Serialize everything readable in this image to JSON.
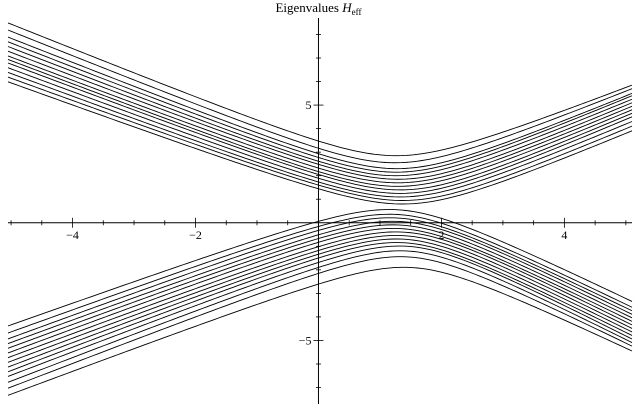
{
  "chart_data": {
    "type": "line",
    "title": {
      "prefix": "Eigenvalues ",
      "symbol": "H",
      "subscript": "eff"
    },
    "xlabel": "",
    "ylabel": "",
    "xlim": [
      -5.05,
      5.1
    ],
    "ylim": [
      -7.7,
      8.7
    ],
    "grid": false,
    "legend": "none",
    "x_ticks": [
      {
        "value": -4,
        "label": "−4"
      },
      {
        "value": -2,
        "label": "−2"
      },
      {
        "value": 2,
        "label": "2"
      },
      {
        "value": 4,
        "label": "4"
      }
    ],
    "y_ticks": [
      {
        "value": 5,
        "label": "5"
      },
      {
        "value": -5,
        "label": "−5"
      }
    ],
    "x_minor_step": 0.5,
    "y_minor_step": 1,
    "description_of_model": "Avoided crossings: each series is a pair of branches y = c ± sqrt((slope·(x − x0))² + gap²)",
    "series": [
      {
        "upper": true,
        "y_left": 8.4,
        "y_min": 2.85,
        "y_right": 5.7,
        "x0": 1.25
      },
      {
        "upper": true,
        "y_left": 8.1,
        "y_min": 2.55,
        "y_right": 5.55,
        "x0": 1.25
      },
      {
        "upper": true,
        "y_left": 7.8,
        "y_min": 2.3,
        "y_right": 5.35,
        "x0": 1.3
      },
      {
        "upper": true,
        "y_left": 7.6,
        "y_min": 2.15,
        "y_right": 5.25,
        "x0": 1.3
      },
      {
        "upper": true,
        "y_left": 7.4,
        "y_min": 2.0,
        "y_right": 5.1,
        "x0": 1.3
      },
      {
        "upper": true,
        "y_left": 7.2,
        "y_min": 1.85,
        "y_right": 4.95,
        "x0": 1.35
      },
      {
        "upper": true,
        "y_left": 7.0,
        "y_min": 1.7,
        "y_right": 4.8,
        "x0": 1.35
      },
      {
        "upper": true,
        "y_left": 6.85,
        "y_min": 1.55,
        "y_right": 4.65,
        "x0": 1.35
      },
      {
        "upper": true,
        "y_left": 6.7,
        "y_min": 1.4,
        "y_right": 4.5,
        "x0": 1.4
      },
      {
        "upper": true,
        "y_left": 6.5,
        "y_min": 1.25,
        "y_right": 4.35,
        "x0": 1.4
      },
      {
        "upper": true,
        "y_left": 6.3,
        "y_min": 1.1,
        "y_right": 4.15,
        "x0": 1.4
      },
      {
        "upper": true,
        "y_left": 6.1,
        "y_min": 0.95,
        "y_right": 3.95,
        "x0": 1.45
      },
      {
        "upper": true,
        "y_left": 5.9,
        "y_min": 0.8,
        "y_right": 3.75,
        "x0": 1.45
      },
      {
        "upper": false,
        "y_left": -4.3,
        "y_min": 0.55,
        "y_right": -3.2,
        "x0": 1.3
      },
      {
        "upper": false,
        "y_left": -4.6,
        "y_min": 0.35,
        "y_right": -3.45,
        "x0": 1.3
      },
      {
        "upper": false,
        "y_left": -4.85,
        "y_min": 0.2,
        "y_right": -3.6,
        "x0": 1.3
      },
      {
        "upper": false,
        "y_left": -5.05,
        "y_min": 0.05,
        "y_right": -3.75,
        "x0": 1.35
      },
      {
        "upper": false,
        "y_left": -5.25,
        "y_min": -0.1,
        "y_right": -3.9,
        "x0": 1.35
      },
      {
        "upper": false,
        "y_left": -5.45,
        "y_min": -0.25,
        "y_right": -4.05,
        "x0": 1.35
      },
      {
        "upper": false,
        "y_left": -5.65,
        "y_min": -0.4,
        "y_right": -4.2,
        "x0": 1.4
      },
      {
        "upper": false,
        "y_left": -5.85,
        "y_min": -0.55,
        "y_right": -4.35,
        "x0": 1.4
      },
      {
        "upper": false,
        "y_left": -6.05,
        "y_min": -0.7,
        "y_right": -4.5,
        "x0": 1.4
      },
      {
        "upper": false,
        "y_left": -6.25,
        "y_min": -0.85,
        "y_right": -4.65,
        "x0": 1.4
      },
      {
        "upper": false,
        "y_left": -6.45,
        "y_min": -1.0,
        "y_right": -4.8,
        "x0": 1.45
      },
      {
        "upper": false,
        "y_left": -6.7,
        "y_min": -1.2,
        "y_right": -4.95,
        "x0": 1.45
      },
      {
        "upper": false,
        "y_left": -6.95,
        "y_min": -1.45,
        "y_right": -5.1,
        "x0": 1.45
      },
      {
        "upper": false,
        "y_left": -7.25,
        "y_min": -1.9,
        "y_right": -5.3,
        "x0": 1.5
      }
    ]
  }
}
